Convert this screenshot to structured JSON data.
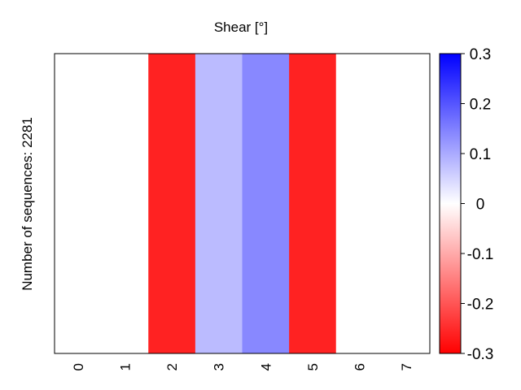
{
  "chart_data": {
    "type": "heatmap",
    "title": "Shear [°]",
    "ylabel": "Number of sequences: 2281",
    "xlabel": "",
    "x": [
      "0",
      "1",
      "2",
      "3",
      "4",
      "5",
      "6",
      "7"
    ],
    "values": [
      0.0,
      0.0,
      -0.26,
      0.08,
      0.14,
      -0.26,
      0.0,
      0.0
    ],
    "colorbar": {
      "range": [
        -0.3,
        0.3
      ],
      "ticks": [
        0.3,
        0.2,
        0.1,
        0,
        -0.1,
        -0.2,
        -0.3
      ],
      "tick_labels": [
        "0.3",
        "0.2",
        "0.1",
        "0",
        "-0.1",
        "-0.2",
        "-0.3"
      ],
      "low_color": "#ff0000",
      "mid_color": "#ffffff",
      "high_color": "#0000ff"
    },
    "grid": false
  }
}
